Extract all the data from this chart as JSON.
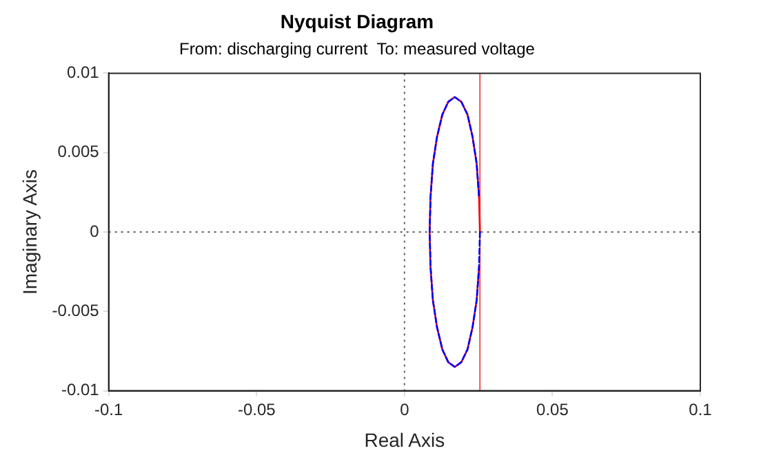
{
  "chart_data": {
    "type": "line",
    "title": "Nyquist Diagram",
    "subtitle": "From: discharging current  To: measured voltage",
    "xlabel": "Real Axis",
    "ylabel": "Imaginary Axis",
    "xlim": [
      -0.1,
      0.1
    ],
    "xticks": [
      -0.1,
      -0.05,
      0,
      0.05,
      0.1
    ],
    "ylim": [
      -0.01,
      0.01
    ],
    "yticks": [
      -0.01,
      -0.005,
      0,
      0.005,
      0.01
    ],
    "grid": false,
    "legend": false,
    "marker": "none",
    "series": [
      {
        "color": "#ff0000",
        "line_style": "solid",
        "x": [
          0.0255,
          0.0252,
          0.0244,
          0.023,
          0.0213,
          0.0192,
          0.017,
          0.0148,
          0.0128,
          0.011,
          0.0096,
          0.0088,
          0.0085,
          0.0088,
          0.0096,
          0.011,
          0.0128,
          0.0148,
          0.017,
          0.0192,
          0.0213,
          0.023,
          0.0244,
          0.0252
        ],
        "values": [
          0,
          0.0022,
          0.0043,
          0.006,
          0.0074,
          0.0082,
          0.0085,
          0.0082,
          0.0074,
          0.006,
          0.0043,
          0.0022,
          0,
          -0.0022,
          -0.0043,
          -0.006,
          -0.0074,
          -0.0082,
          -0.0085,
          -0.0082,
          -0.0074,
          -0.006,
          -0.0043,
          -0.0022
        ]
      },
      {
        "color": "#0000ff",
        "line_style": "dashed",
        "x": [
          0.0255,
          0.0252,
          0.0244,
          0.023,
          0.0213,
          0.0192,
          0.017,
          0.0148,
          0.0128,
          0.011,
          0.0096,
          0.0088,
          0.0085,
          0.0088,
          0.0096,
          0.011,
          0.0128,
          0.0148,
          0.017,
          0.0192,
          0.0213,
          0.023,
          0.0244,
          0.0252
        ],
        "values": [
          0,
          -0.0022,
          -0.0043,
          -0.006,
          -0.0074,
          -0.0082,
          -0.0085,
          -0.0082,
          -0.0074,
          -0.006,
          -0.0043,
          -0.0022,
          0,
          0.0022,
          0.0043,
          0.006,
          0.0074,
          0.0082,
          0.0085,
          0.0082,
          0.0074,
          0.006,
          0.0043,
          0.0022
        ]
      }
    ],
    "ref_lines": [
      {
        "axis": "x",
        "value": 0,
        "color": "#606060",
        "line_style": "dotted"
      },
      {
        "axis": "y",
        "value": 0,
        "color": "#606060",
        "line_style": "dotted"
      },
      {
        "axis": "x",
        "value": 0.0255,
        "color": "#f05050",
        "line_style": "solid"
      }
    ]
  }
}
